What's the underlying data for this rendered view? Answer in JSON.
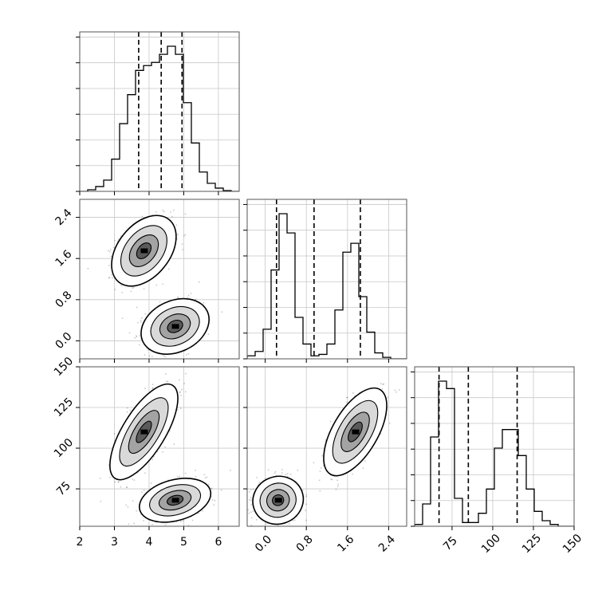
{
  "chart_data": {
    "type": "corner",
    "parameters": [
      {
        "id": "p0",
        "range": [
          2,
          6.6
        ],
        "ticks": [
          2,
          3,
          4,
          5,
          6
        ],
        "tick_labels": [
          "2",
          "3",
          "4",
          "5",
          "6"
        ],
        "quantiles": [
          3.7,
          4.35,
          4.95
        ],
        "hist_edges": [
          2.0,
          2.23,
          2.46,
          2.69,
          2.92,
          3.15,
          3.38,
          3.61,
          3.84,
          4.07,
          4.3,
          4.53,
          4.76,
          4.99,
          5.22,
          5.45,
          5.68,
          5.91,
          6.14,
          6.37,
          6.6
        ],
        "hist_counts": [
          0,
          0.01,
          0.03,
          0.07,
          0.2,
          0.42,
          0.6,
          0.75,
          0.78,
          0.8,
          0.85,
          0.9,
          0.85,
          0.55,
          0.3,
          0.12,
          0.05,
          0.02,
          0.005,
          0
        ]
      },
      {
        "id": "p1",
        "range": [
          -0.35,
          2.75
        ],
        "ticks": [
          0.0,
          0.8,
          1.6,
          2.4
        ],
        "tick_labels": [
          "0.0",
          "0.8",
          "1.6",
          "2.4"
        ],
        "quantiles": [
          0.22,
          0.95,
          1.85
        ],
        "hist_edges": [
          -0.35,
          -0.195,
          -0.04,
          0.115,
          0.27,
          0.425,
          0.58,
          0.735,
          0.89,
          1.045,
          1.2,
          1.355,
          1.51,
          1.665,
          1.82,
          1.975,
          2.13,
          2.285,
          2.44,
          2.595,
          2.75
        ],
        "hist_counts": [
          0.02,
          0.05,
          0.2,
          0.6,
          0.98,
          0.85,
          0.28,
          0.1,
          0.02,
          0.03,
          0.1,
          0.33,
          0.72,
          0.78,
          0.42,
          0.18,
          0.04,
          0.01,
          0,
          0
        ]
      },
      {
        "id": "p2",
        "range": [
          52,
          150
        ],
        "ticks": [
          75,
          100,
          125,
          150
        ],
        "tick_labels": [
          "75",
          "100",
          "125",
          "150"
        ],
        "left_ticks": [
          75,
          100,
          125,
          150
        ],
        "quantiles": [
          67,
          85,
          115
        ],
        "hist_edges": [
          52,
          56.9,
          61.8,
          66.7,
          71.6,
          76.5,
          81.4,
          86.3,
          91.2,
          96.1,
          101,
          105.9,
          110.8,
          115.7,
          120.6,
          125.5,
          130.4,
          135.3,
          140.2,
          145.1,
          150
        ],
        "hist_counts": [
          0.01,
          0.12,
          0.48,
          0.78,
          0.74,
          0.15,
          0.02,
          0.02,
          0.07,
          0.2,
          0.42,
          0.52,
          0.52,
          0.38,
          0.2,
          0.08,
          0.03,
          0.01,
          0,
          0
        ]
      }
    ],
    "pairs": [
      {
        "x": "p0",
        "y": "p1",
        "clusters": [
          {
            "cx": 3.85,
            "cy": 1.75,
            "sx": 0.38,
            "sy": 0.28,
            "rho": 0.4
          },
          {
            "cx": 4.75,
            "cy": 0.28,
            "sx": 0.4,
            "sy": 0.22,
            "rho": 0.25
          }
        ]
      },
      {
        "x": "p0",
        "y": "p2",
        "clusters": [
          {
            "cx": 3.85,
            "cy": 110,
            "sx": 0.4,
            "sy": 12,
            "rho": 0.7
          },
          {
            "cx": 4.75,
            "cy": 68,
            "sx": 0.42,
            "sy": 5.5,
            "rho": 0.3
          }
        ]
      },
      {
        "x": "p1",
        "y": "p2",
        "clusters": [
          {
            "cx": 0.25,
            "cy": 68,
            "sx": 0.2,
            "sy": 6,
            "rho": 0.05
          },
          {
            "cx": 1.75,
            "cy": 110,
            "sx": 0.25,
            "sy": 11,
            "rho": 0.6
          }
        ]
      }
    ],
    "grid": true,
    "title": "",
    "xlabel": "",
    "ylabel": ""
  }
}
